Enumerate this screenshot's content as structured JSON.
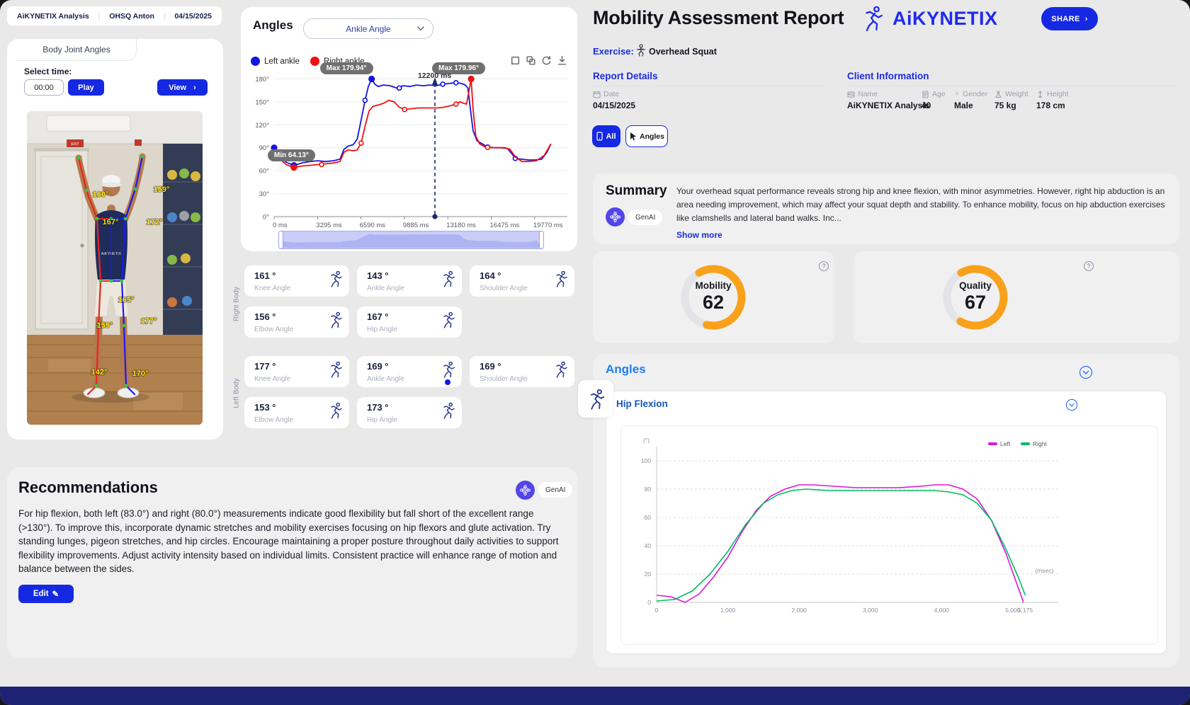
{
  "colors": {
    "primary": "#1529e3",
    "brand": "#1f2bf0",
    "accent_orange": "#f9a11b",
    "left_line": "#1515e0",
    "right_line": "#ee1111",
    "hip_left": "#d918d9",
    "hip_right": "#00bc62",
    "genai_purple": "#5346e6"
  },
  "header_bar": {
    "app": "AiKYNETIX Analysis",
    "session": "OHSQ Anton",
    "date": "04/15/2025"
  },
  "body_joint_panel": {
    "tab": "Body Joint Angles",
    "select_time_label": "Select time:",
    "time_value": "00:00",
    "play_label": "Play",
    "view_label": "View",
    "chevron": "›",
    "shirt_text": "AiKYNETIX",
    "exit_text": "EXIT",
    "photo_angles": [
      "160°",
      "159°",
      "167°",
      "172°",
      "165°",
      "159°",
      "177°",
      "142°",
      "170°"
    ]
  },
  "angles_panel": {
    "title": "Angles",
    "dropdown_value": "Ankle Angle",
    "legend": [
      {
        "label": "Left ankle",
        "color": "#1515e0"
      },
      {
        "label": "Right ankle",
        "color": "#ee1111"
      }
    ],
    "tooltips": {
      "max_left": "Max 179.94°",
      "max_right": "Max 179.96°",
      "min": "Min 64.13°",
      "cursor": "12200 ms"
    }
  },
  "chart_data": [
    {
      "id": "ankle",
      "type": "line",
      "title": "Ankle Angle",
      "xlabel": "ms",
      "ylabel": "degrees",
      "xlim": [
        0,
        21500
      ],
      "ylim": [
        0,
        185
      ],
      "yticks": [
        "180°",
        "150°",
        "120°",
        "90°",
        "60°",
        "30°",
        "0°"
      ],
      "ytick_values": [
        180,
        150,
        120,
        90,
        60,
        30,
        0
      ],
      "xticks": [
        "0 ms",
        "3295 ms",
        "6590 ms",
        "9885 ms",
        "13180 ms",
        "16475 ms",
        "19770 ms"
      ],
      "xtick_values": [
        0,
        3295,
        6590,
        9885,
        13180,
        16475,
        19770
      ],
      "cursor_ms": 12200,
      "legend_position": "top-left",
      "grid": "horizontal",
      "series": [
        {
          "name": "Left ankle",
          "color": "#1515e0",
          "max": 179.94,
          "x": [
            0,
            400,
            900,
            1500,
            2100,
            2700,
            3300,
            3900,
            4500,
            5000,
            5300,
            5600,
            6000,
            6300,
            6600,
            6900,
            7150,
            7400,
            7650,
            7900,
            8300,
            8800,
            9300,
            9800,
            10300,
            10800,
            11300,
            11800,
            12300,
            12800,
            13300,
            13800,
            14200,
            14500,
            14700,
            14900,
            15100,
            15400,
            15800,
            16200,
            16700,
            17200,
            17700,
            18000,
            18300,
            18800,
            19300,
            19800,
            20300,
            20700,
            21000
          ],
          "y": [
            90,
            80,
            71,
            67,
            70,
            72,
            73,
            72,
            73,
            75,
            88,
            92,
            94,
            101,
            126,
            152,
            170,
            179.94,
            173,
            170,
            172,
            171,
            168,
            171,
            170,
            172,
            171,
            172,
            171,
            173,
            174,
            175,
            174,
            172,
            168,
            140,
            112,
            99,
            95,
            91,
            90,
            90,
            89,
            83,
            76,
            75,
            74,
            74,
            75,
            84,
            95
          ],
          "dots_open": [
            [
              6900,
              152
            ],
            [
              9500,
              168
            ],
            [
              12800,
              173
            ],
            [
              13800,
              175
            ],
            [
              16200,
              91
            ],
            [
              18300,
              76
            ]
          ],
          "dots_filled": [
            [
              0,
              90
            ],
            [
              1500,
              67
            ],
            [
              7400,
              179.94
            ]
          ]
        },
        {
          "name": "Right ankle",
          "color": "#ee1111",
          "min": 64.13,
          "max": 179.96,
          "x": [
            0,
            400,
            900,
            1500,
            2100,
            2700,
            3300,
            3900,
            4500,
            5000,
            5300,
            5600,
            6000,
            6300,
            6600,
            6900,
            7200,
            7500,
            7900,
            8300,
            8700,
            9100,
            9500,
            9900,
            10400,
            10900,
            11400,
            11900,
            12400,
            12900,
            13400,
            13800,
            14100,
            14400,
            14600,
            14800,
            14950,
            15100,
            15300,
            15600,
            16000,
            16500,
            17000,
            17500,
            17900,
            18300,
            18800,
            19300,
            19900,
            20500,
            21000
          ],
          "y": [
            88,
            76,
            68,
            64.13,
            66,
            67,
            68,
            69,
            70,
            72,
            84,
            87,
            86,
            87,
            96,
            118,
            138,
            144,
            146,
            148,
            152,
            150,
            143,
            140,
            141,
            142,
            142,
            142,
            142,
            143,
            145,
            147,
            150,
            148,
            147,
            165,
            179.96,
            140,
            105,
            95,
            91,
            90,
            90,
            90,
            88,
            78,
            72,
            72,
            73,
            80,
            95
          ],
          "dots_open": [
            [
              3600,
              68
            ],
            [
              6600,
              96
            ],
            [
              9900,
              140
            ],
            [
              13800,
              147
            ],
            [
              16200,
              90.5
            ]
          ],
          "dots_filled": [
            [
              1500,
              64.13
            ],
            [
              14950,
              179.96
            ]
          ]
        }
      ]
    },
    {
      "id": "hip_flexion",
      "type": "line",
      "title": "Hip Flexion",
      "ylabel": "(°)",
      "xlabel": "(msec)",
      "xlim": [
        0,
        5250
      ],
      "ylim": [
        0,
        102
      ],
      "yticks": [
        "100",
        "80",
        "60",
        "40",
        "20",
        "0"
      ],
      "ytick_values": [
        100,
        80,
        60,
        40,
        20,
        0
      ],
      "xticks": [
        "0",
        "1,000",
        "2,000",
        "3,000",
        "4,000",
        "5,000",
        "5,175"
      ],
      "xtick_values": [
        0,
        1000,
        2000,
        3000,
        4000,
        5000,
        5175
      ],
      "legend": [
        {
          "name": "Left",
          "color": "#d918d9"
        },
        {
          "name": "Right",
          "color": "#00bc62"
        }
      ],
      "legend_position": "top-right",
      "grid": "dashed-horizontal",
      "series": [
        {
          "name": "Left",
          "color": "#d918d9",
          "x": [
            0,
            200,
            400,
            600,
            800,
            1000,
            1200,
            1400,
            1600,
            1800,
            2000,
            2200,
            2500,
            2800,
            3100,
            3400,
            3700,
            3900,
            4100,
            4300,
            4500,
            4700,
            4900,
            5050,
            5150
          ],
          "y": [
            5,
            4,
            0,
            6,
            18,
            32,
            50,
            65,
            75,
            80,
            83,
            83,
            82,
            81,
            81,
            81,
            82,
            83,
            83,
            80,
            73,
            58,
            35,
            14,
            0
          ]
        },
        {
          "name": "Right",
          "color": "#00bc62",
          "x": [
            0,
            250,
            500,
            750,
            1000,
            1250,
            1500,
            1700,
            1900,
            2100,
            2400,
            2700,
            3000,
            3300,
            3600,
            3900,
            4100,
            4300,
            4500,
            4700,
            4900,
            5075,
            5175
          ],
          "y": [
            1,
            2,
            8,
            20,
            36,
            55,
            70,
            76,
            79,
            80,
            79,
            79,
            79,
            79,
            79,
            79,
            78,
            76,
            70,
            58,
            38,
            18,
            5
          ]
        }
      ]
    }
  ],
  "angle_cards": {
    "right_label": "Right Body",
    "left_label": "Left Body",
    "right": [
      {
        "value": "161 °",
        "label": "Knee Angle"
      },
      {
        "value": "143 °",
        "label": "Ankle Angle"
      },
      {
        "value": "164 °",
        "label": "Shoulder Angle"
      },
      {
        "value": "156 °",
        "label": "Elbow Angle"
      },
      {
        "value": "167 °",
        "label": "Hip Angle"
      }
    ],
    "left": [
      {
        "value": "177 °",
        "label": "Knee Angle"
      },
      {
        "value": "169 °",
        "label": "Ankle Angle",
        "selected": true
      },
      {
        "value": "169 °",
        "label": "Shoulder Angle"
      },
      {
        "value": "153 °",
        "label": "Elbow Angle"
      },
      {
        "value": "173 °",
        "label": "Hip Angle"
      }
    ]
  },
  "recommendations": {
    "title": "Recommendations",
    "genai": "GenAI",
    "text": "For hip flexion, both left (83.0°) and right (80.0°) measurements indicate good flexibility but fall short of the excellent range (>130°). To improve this, incorporate dynamic stretches and mobility exercises focusing on hip flexors and glute activation. Try standing lunges, pigeon stretches, and hip circles. Encourage maintaining a proper posture throughout daily activities to support flexibility improvements. Adjust activity intensity based on individual limits. Consistent practice will enhance range of motion and balance between the sides.",
    "edit_label": "Edit",
    "edit_icon": "✎"
  },
  "report": {
    "title": "Mobility Assessment Report",
    "brand": "AiKYNETIX",
    "share_label": "SHARE",
    "share_chevron": "›",
    "exercise_label": "Exercise:",
    "exercise_value": "Overhead Squat",
    "report_details": {
      "heading": "Report Details",
      "date_label": "Date",
      "date_value": "04/15/2025"
    },
    "client_info": {
      "heading": "Client Information",
      "fields": [
        {
          "label": "Name",
          "value": "AiKYNETIX Analysis"
        },
        {
          "label": "Age",
          "value": "40"
        },
        {
          "label": "Gender",
          "value": "Male"
        },
        {
          "label": "Weight",
          "value": "75 kg"
        },
        {
          "label": "Height",
          "value": "178 cm"
        }
      ]
    },
    "filter_all": "All",
    "filter_angles": "Angles",
    "summary": {
      "heading": "Summary",
      "genai": "GenAI",
      "text": "Your overhead squat performance reveals strong hip and knee flexion, with minor asymmetries. However, right hip abduction is an area needing improvement, which may affect your squat depth and stability. To enhance mobility, focus on hip abduction exercises like clamshells and lateral band walks. Inc...",
      "show_more": "Show more"
    },
    "gauges": [
      {
        "label": "Mobility",
        "value": 62
      },
      {
        "label": "Quality",
        "value": 67
      }
    ],
    "angles_section": {
      "heading": "Angles",
      "hip_flexion_heading": "Hip Flexion"
    }
  }
}
